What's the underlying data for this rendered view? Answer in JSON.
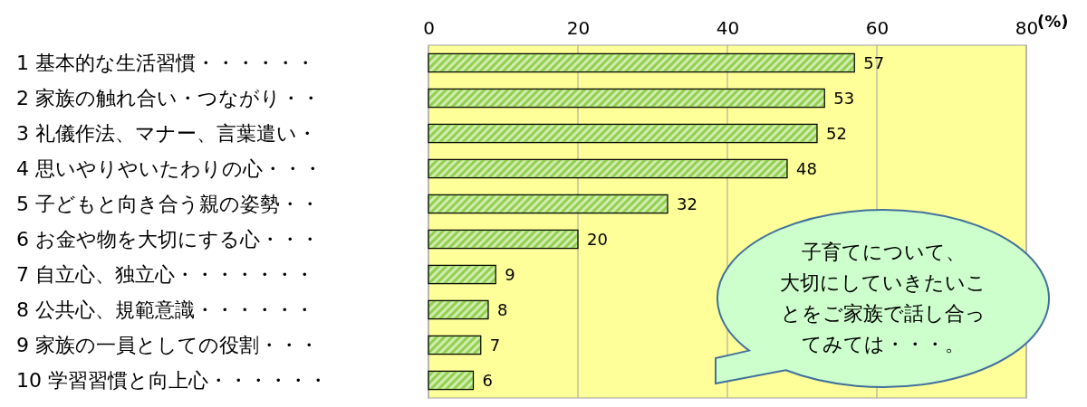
{
  "chart_data": {
    "type": "bar",
    "orientation": "horizontal",
    "xlabel": "(%)",
    "categories": [
      "1 基本的な生活習慣・・・・・・",
      "2 家族の触れ合い・つながり・・",
      "3 礼儀作法、マナー、言葉遣い・",
      "4 思いやりやいたわりの心・・・",
      "5 子どもと向き合う親の姿勢・・",
      "6 お金や物を大切にする心・・・",
      "7 自立心、独立心・・・・・・・",
      "8 公共心、規範意識・・・・・・",
      "9 家族の一員としての役割・・・",
      "10 学習習慣と向上心・・・・・・"
    ],
    "values": [
      57,
      53,
      52,
      48,
      32,
      20,
      9,
      8,
      7,
      6
    ],
    "color": "#92d050",
    "xlim": [
      0,
      80
    ],
    "xticks": [
      0,
      20,
      40,
      60,
      80
    ],
    "grid": "x",
    "data_labels": true,
    "annotations": [
      "子育てについて、大切にしていきたいことをご家族で話し合ってみては・・・。"
    ]
  }
}
